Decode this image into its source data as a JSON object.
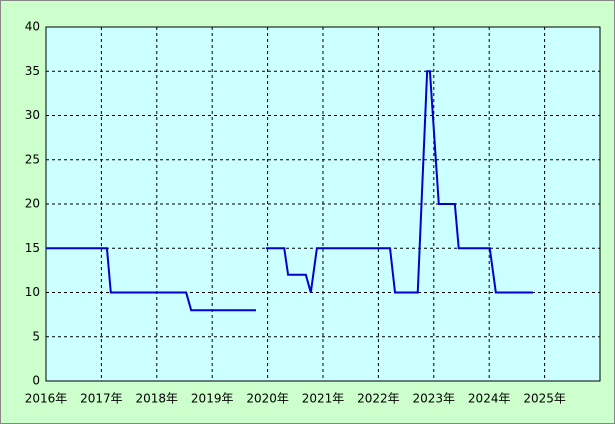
{
  "chart_data": {
    "type": "line",
    "x": [
      2016.0,
      2017.1,
      2017.17,
      2018.53,
      2018.62,
      2019.79,
      2019.88,
      2019.97,
      2020.3,
      2020.37,
      2020.69,
      2020.78,
      2020.89,
      2022.21,
      2022.3,
      2022.71,
      2022.88,
      2022.93,
      2023.09,
      2023.38,
      2023.45,
      2024.01,
      2024.12,
      2024.79
    ],
    "series": [
      {
        "color": "#0000cc",
        "values": [
          15,
          15,
          10,
          10,
          8,
          8,
          null,
          15,
          15,
          12,
          12,
          10,
          15,
          15,
          10,
          10,
          35,
          35,
          20,
          20,
          15,
          15,
          10,
          10
        ]
      }
    ],
    "xlim": [
      2016,
      2026
    ],
    "xticks": [
      {
        "value": 2016,
        "label": "2016年"
      },
      {
        "value": 2017,
        "label": "2017年"
      },
      {
        "value": 2018,
        "label": "2018年"
      },
      {
        "value": 2019,
        "label": "2019年"
      },
      {
        "value": 2020,
        "label": "2020年"
      },
      {
        "value": 2021,
        "label": "2021年"
      },
      {
        "value": 2022,
        "label": "2022年"
      },
      {
        "value": 2023,
        "label": "2023年"
      },
      {
        "value": 2024,
        "label": "2024年"
      },
      {
        "value": 2025,
        "label": "2025年"
      }
    ],
    "ylim": [
      0,
      40
    ],
    "yticks": [
      0,
      5,
      10,
      15,
      20,
      25,
      30,
      35,
      40
    ],
    "grid": true
  }
}
